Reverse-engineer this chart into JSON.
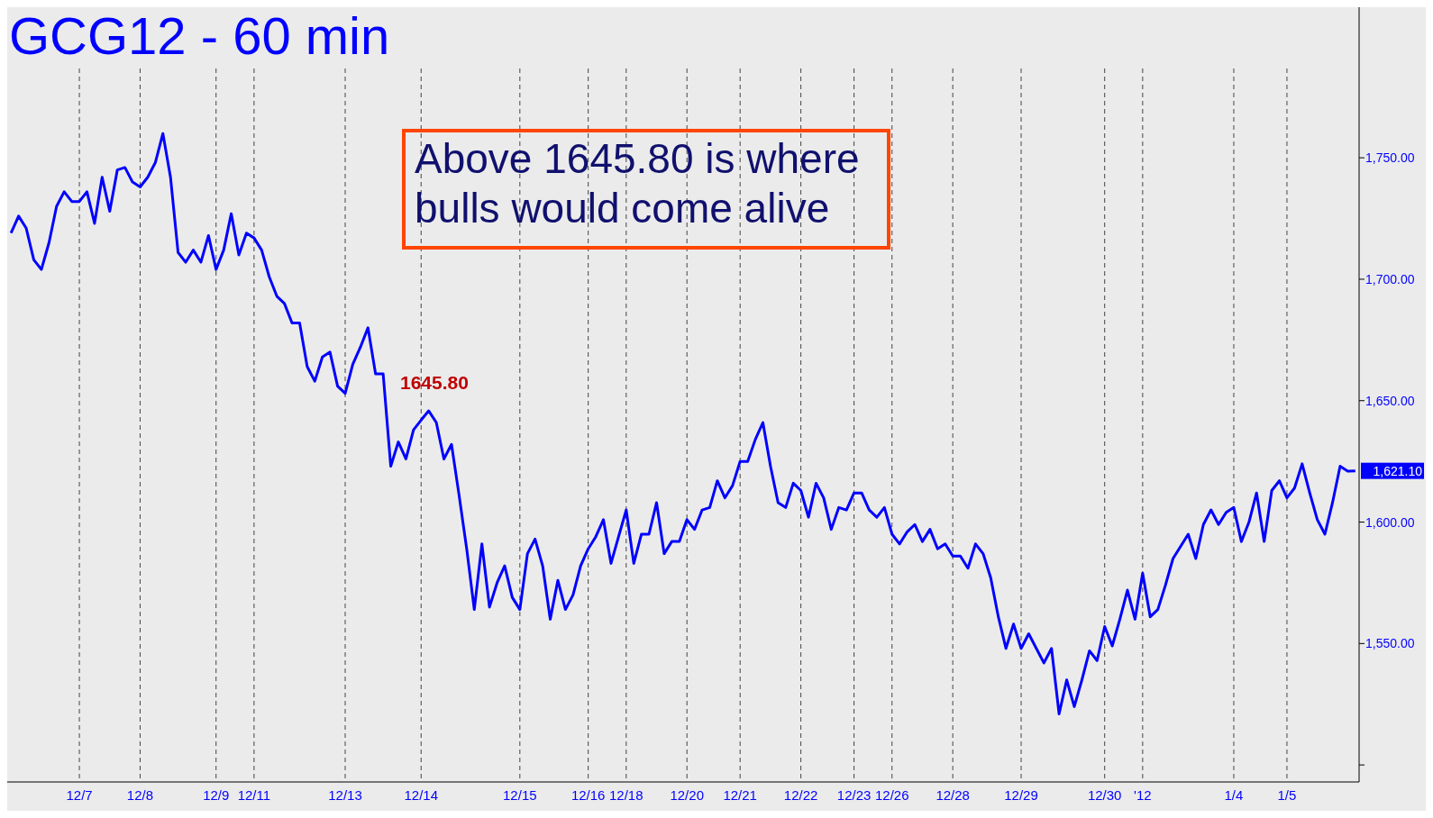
{
  "chart_data": {
    "type": "line",
    "title": "GCG12 - 60 min",
    "categories": [
      null,
      null,
      null,
      null,
      null,
      null,
      null,
      null,
      null,
      "12/7",
      null,
      null,
      null,
      null,
      null,
      null,
      null,
      "12/8",
      null,
      null,
      null,
      null,
      null,
      null,
      null,
      null,
      null,
      "12/9",
      null,
      null,
      null,
      null,
      "12/11",
      null,
      null,
      null,
      null,
      null,
      null,
      null,
      null,
      null,
      null,
      null,
      "12/13",
      null,
      null,
      null,
      null,
      null,
      null,
      null,
      null,
      null,
      "12/14",
      null,
      null,
      null,
      null,
      null,
      null,
      null,
      null,
      null,
      null,
      null,
      null,
      "12/15",
      null,
      null,
      null,
      null,
      null,
      null,
      null,
      null,
      "12/16",
      null,
      null,
      null,
      null,
      "12/18",
      null,
      null,
      null,
      null,
      null,
      null,
      null,
      "12/20",
      null,
      null,
      null,
      null,
      null,
      null,
      "12/21",
      null,
      null,
      null,
      null,
      null,
      null,
      null,
      "12/22",
      null,
      null,
      null,
      null,
      null,
      null,
      "12/23",
      null,
      null,
      null,
      null,
      "12/26",
      null,
      null,
      null,
      null,
      null,
      null,
      null,
      "12/28",
      null,
      null,
      null,
      null,
      null,
      null,
      null,
      null,
      "12/29",
      null,
      null,
      null,
      null,
      null,
      null,
      null,
      null,
      null,
      null,
      "12/30",
      null,
      null,
      null,
      null,
      "'12",
      null,
      null,
      null,
      null,
      null,
      null,
      null,
      null,
      null,
      null,
      null,
      "1/4",
      null,
      null,
      null,
      null,
      null,
      null,
      "1/5",
      null,
      null,
      null,
      null,
      null,
      null,
      null,
      null,
      null
    ],
    "series": [
      {
        "color": "#0000ff",
        "values": [
          1719,
          1726,
          1721,
          1708,
          1704,
          1715,
          1730,
          1736,
          1732,
          1732,
          1736,
          1723,
          1742,
          1728,
          1745,
          1746,
          1740,
          1738,
          1742,
          1748,
          1760,
          1742,
          1711,
          1707,
          1712,
          1707,
          1718,
          1704,
          1712,
          1727,
          1710,
          1719,
          1717,
          1712,
          1701,
          1693,
          1690,
          1682,
          1682,
          1664,
          1658,
          1668,
          1670,
          1656,
          1653,
          1665,
          1672,
          1680,
          1661,
          1661,
          1623,
          1633,
          1626,
          1638,
          1642,
          1645.8,
          1641,
          1626,
          1632,
          1611,
          1589,
          1564,
          1591,
          1565,
          1575,
          1582,
          1569,
          1564,
          1587,
          1593,
          1582,
          1560,
          1576,
          1564,
          1570,
          1582,
          1589,
          1594,
          1601,
          1583,
          1594,
          1605,
          1583,
          1595,
          1595,
          1608,
          1587,
          1592,
          1592,
          1601,
          1597,
          1605,
          1606,
          1617,
          1610,
          1615,
          1625,
          1625,
          1634,
          1641,
          1623,
          1608,
          1606,
          1616,
          1613,
          1602,
          1616,
          1610,
          1597,
          1606,
          1605,
          1612,
          1612,
          1605,
          1602,
          1606,
          1595,
          1591,
          1596,
          1599,
          1592,
          1597,
          1589,
          1591,
          1586,
          1586,
          1581,
          1591,
          1587,
          1577,
          1561,
          1548,
          1558,
          1548,
          1554,
          1548,
          1542,
          1548,
          1521,
          1535,
          1524,
          1535,
          1547,
          1543,
          1557,
          1549,
          1560,
          1572,
          1560,
          1579,
          1561,
          1564,
          1574,
          1585,
          1590,
          1595,
          1585,
          1599,
          1605,
          1599,
          1604,
          1606,
          1592,
          1600,
          1612,
          1592,
          1613,
          1617,
          1610,
          1614,
          1624,
          1612,
          1601,
          1595,
          1608,
          1623,
          1621,
          1621.1
        ]
      }
    ],
    "ylim": [
      1493,
      1812
    ],
    "yticks": [
      {
        "value": 1500,
        "label": null
      },
      {
        "value": 1550,
        "label": "1,550.00"
      },
      {
        "value": 1600,
        "label": "1,600.00"
      },
      {
        "value": 1650,
        "label": "1,650.00"
      },
      {
        "value": 1700,
        "label": "1,700.00"
      },
      {
        "value": 1750,
        "label": "1,750.00"
      }
    ],
    "grid": "x",
    "annotations": [
      "Above 1645.80 is where bulls would come alive",
      "1645.80",
      "1,621.10"
    ]
  }
}
